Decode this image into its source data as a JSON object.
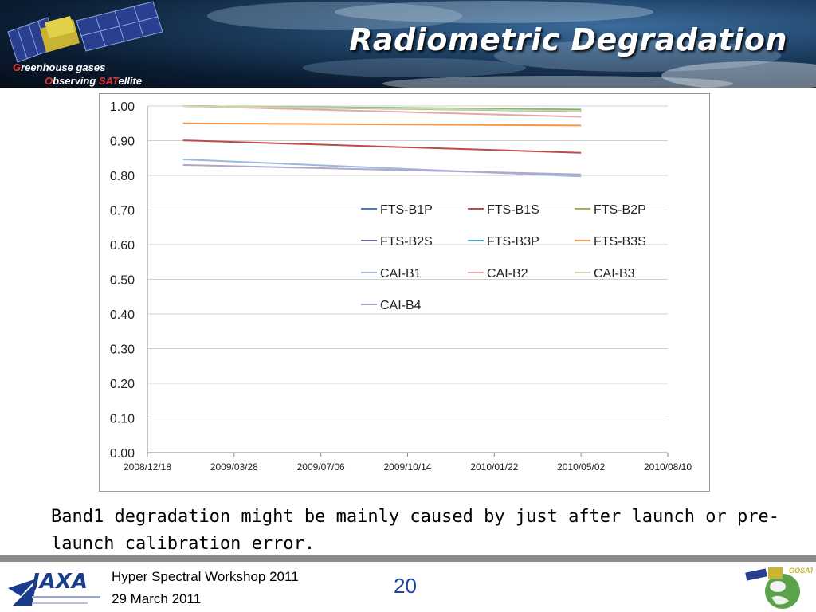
{
  "header": {
    "title": "Radiometric Degradation",
    "logo_line1_initial": "G",
    "logo_line1_rest": "reenhouse gases",
    "logo_line2_initial": "O",
    "logo_line2_mid": "bserving ",
    "logo_line2_accent": "SAT",
    "logo_line2_rest": "ellite"
  },
  "caption": "Band1 degradation might be mainly caused by just after launch or pre-launch calibration error.",
  "footer": {
    "event": "Hyper Spectral Workshop 2011",
    "date": "29 March 2011",
    "page_number": "20",
    "right_logo_text": "GOSAT"
  },
  "colors": {
    "title_text": "#ffffff",
    "footer_bar": "#8c8c8c",
    "page_number": "#1f3fa6"
  },
  "chart_data": {
    "type": "line",
    "title": "",
    "xlabel": "",
    "ylabel": "",
    "ylim": [
      0,
      1
    ],
    "xlim": [
      "2008/12/18",
      "2010/08/10"
    ],
    "y_ticks": [
      "0.00",
      "0.10",
      "0.20",
      "0.30",
      "0.40",
      "0.50",
      "0.60",
      "0.70",
      "0.80",
      "0.90",
      "1.00"
    ],
    "x_ticks": [
      "2008/12/18",
      "2009/03/28",
      "2009/07/06",
      "2009/10/14",
      "2010/01/22",
      "2010/05/02",
      "2010/08/10"
    ],
    "grid": "horizontal",
    "legend_position": "inside-center",
    "x": [
      "2009/01/28",
      "2010/05/02"
    ],
    "series": [
      {
        "name": "FTS-B1P",
        "color": "#4a7ebb",
        "values": [
          1.0,
          0.988
        ]
      },
      {
        "name": "FTS-B1S",
        "color": "#be4b48",
        "values": [
          0.901,
          0.865
        ]
      },
      {
        "name": "FTS-B2P",
        "color": "#98b954",
        "values": [
          1.0,
          0.99
        ]
      },
      {
        "name": "FTS-B2S",
        "color": "#7d60a0",
        "values": [
          1.0,
          0.985
        ]
      },
      {
        "name": "FTS-B3P",
        "color": "#46aac5",
        "values": [
          1.0,
          0.987
        ]
      },
      {
        "name": "FTS-B3S",
        "color": "#f79646",
        "values": [
          0.95,
          0.944
        ]
      },
      {
        "name": "CAI-B1",
        "color": "#9bb8de",
        "values": [
          0.846,
          0.797
        ]
      },
      {
        "name": "CAI-B2",
        "color": "#e0a9a7",
        "values": [
          1.0,
          0.969
        ]
      },
      {
        "name": "CAI-B3",
        "color": "#c6dba6",
        "values": [
          1.0,
          0.986
        ]
      },
      {
        "name": "CAI-B4",
        "color": "#b3a5cc",
        "values": [
          0.83,
          0.803
        ]
      }
    ]
  }
}
